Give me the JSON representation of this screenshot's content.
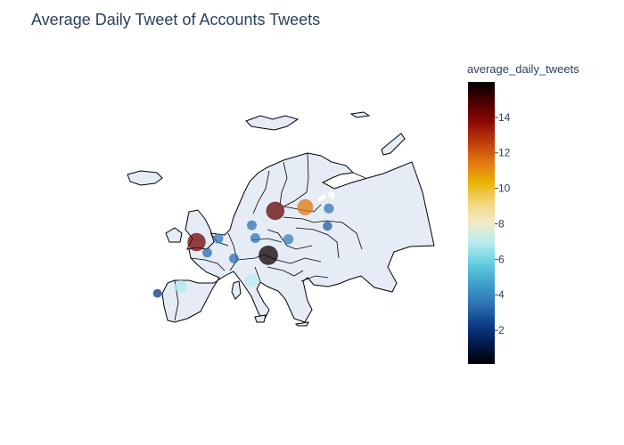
{
  "title": "Average Daily Tweet of Accounts Tweets",
  "colorbar": {
    "title": "average_daily_tweets",
    "min": 0.1,
    "max": 16,
    "ticks": [
      2,
      4,
      6,
      8,
      10,
      12,
      14
    ],
    "colorscale": [
      "#000000",
      "#001a4d",
      "#0d3f8c",
      "#2f74b5",
      "#3fa0cc",
      "#64cfe0",
      "#b6ecf0",
      "#f1ebc8",
      "#f3d67c",
      "#eab306",
      "#e07a10",
      "#c03c0c",
      "#8c0a05",
      "#4d0000",
      "#000000"
    ]
  },
  "chart_data": {
    "type": "scatter_geo",
    "scope": "europe",
    "marker_value": "average_daily_tweets",
    "points": [
      {
        "lon": 13.4,
        "lat": 52.5,
        "value": 3.5
      },
      {
        "lon": 16.4,
        "lat": 48.2,
        "value": 15.8
      },
      {
        "lon": 18.0,
        "lat": 59.3,
        "value": 14.5
      },
      {
        "lon": 24.9,
        "lat": 60.2,
        "value": 11.5
      },
      {
        "lon": -0.1,
        "lat": 51.5,
        "value": 14.2
      },
      {
        "lon": 12.5,
        "lat": 41.9,
        "value": 7.0
      },
      {
        "lon": -3.7,
        "lat": 40.4,
        "value": 6.8
      },
      {
        "lon": 21.0,
        "lat": 52.2,
        "value": 3.8
      },
      {
        "lon": 30.3,
        "lat": 59.9,
        "value": 3.6
      },
      {
        "lon": 12.6,
        "lat": 55.7,
        "value": 3.5
      },
      {
        "lon": 4.9,
        "lat": 52.4,
        "value": 3.6
      },
      {
        "lon": 2.35,
        "lat": 48.85,
        "value": 3.3
      },
      {
        "lon": 8.5,
        "lat": 47.4,
        "value": 3.4
      },
      {
        "lon": -9.1,
        "lat": 38.7,
        "value": 2.0
      },
      {
        "lon": 30.0,
        "lat": 55.5,
        "value": 3.0
      }
    ]
  }
}
